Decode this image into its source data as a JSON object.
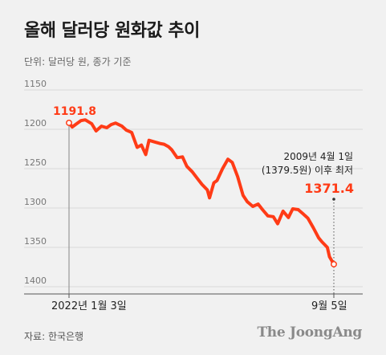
{
  "header": {
    "title": "올해 달러당 원화값 추이",
    "unit": "단위: 달러당 원, 종가 기준"
  },
  "footer": {
    "source": "자료: 한국은행",
    "brand": "The JoongAng"
  },
  "colors": {
    "line": "#ff3b16",
    "axis": "#555555",
    "background": "#f1f1f1"
  },
  "chart_data": {
    "type": "line",
    "title": "올해 달러당 원화값 추이",
    "ylabel": "단위: 달러당 원, 종가 기준",
    "y_reversed": true,
    "ylim": [
      1150,
      1400
    ],
    "yticks": [
      "1150",
      "1200",
      "1250",
      "1300",
      "1350",
      "1400"
    ],
    "xlim": [
      "2022-01-03",
      "2022-09-05"
    ],
    "x_tick_labels": [
      "2022년 1월 3일",
      "9월 5일"
    ],
    "series": [
      {
        "x": [
          "2022-01-03",
          "2022-01-06",
          "2022-01-10",
          "2022-01-14",
          "2022-01-18",
          "2022-01-24",
          "2022-01-28",
          "2022-02-02",
          "2022-02-07",
          "2022-02-11",
          "2022-02-15",
          "2022-02-21",
          "2022-02-25",
          "2022-03-02",
          "2022-03-07",
          "2022-03-11",
          "2022-03-15",
          "2022-03-18",
          "2022-03-23",
          "2022-03-28",
          "2022-04-01",
          "2022-04-05",
          "2022-04-08",
          "2022-04-13",
          "2022-04-18",
          "2022-04-22",
          "2022-04-27",
          "2022-05-02",
          "2022-05-06",
          "2022-05-11",
          "2022-05-13",
          "2022-05-17",
          "2022-05-20",
          "2022-05-25",
          "2022-05-30",
          "2022-06-03",
          "2022-06-08",
          "2022-06-13",
          "2022-06-17",
          "2022-06-22",
          "2022-06-27",
          "2022-07-01",
          "2022-07-06",
          "2022-07-11",
          "2022-07-15",
          "2022-07-20",
          "2022-07-25",
          "2022-07-29",
          "2022-08-03",
          "2022-08-08",
          "2022-08-12",
          "2022-08-17",
          "2022-08-22",
          "2022-08-25",
          "2022-08-30",
          "2022-09-01",
          "2022-09-05"
        ],
        "y": [
          1191.8,
          1197,
          1193,
          1189,
          1188,
          1193,
          1202,
          1196,
          1198,
          1194,
          1192,
          1196,
          1201,
          1204,
          1223,
          1220,
          1232,
          1214,
          1216,
          1218,
          1219,
          1222,
          1226,
          1236,
          1235,
          1247,
          1254,
          1263,
          1270,
          1277,
          1287,
          1268,
          1265,
          1250,
          1238,
          1242,
          1260,
          1284,
          1292,
          1298,
          1295,
          1302,
          1310,
          1311,
          1320,
          1304,
          1312,
          1301,
          1302,
          1308,
          1313,
          1325,
          1338,
          1343,
          1350,
          1362,
          1371.4
        ]
      }
    ],
    "annotations": [
      {
        "label": "1191.8"
      },
      {
        "note_line1": "2009년 4월 1일",
        "note_line2": "(1379.5원) 이후 최저",
        "label": "1371.4"
      }
    ]
  }
}
